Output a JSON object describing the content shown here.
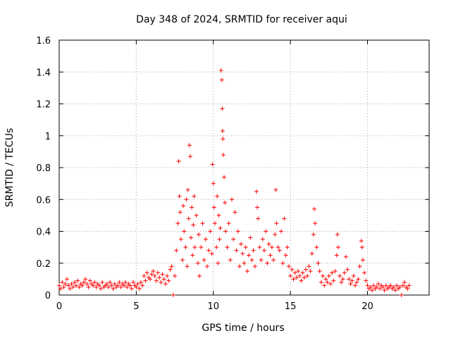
{
  "chart_data": {
    "type": "scatter",
    "title": "Day 348 of 2024, SRMTID for receiver aqui",
    "xlabel": "GPS time / hours",
    "ylabel": "SRMTID / TECUs",
    "xlim": [
      0,
      24
    ],
    "ylim": [
      0,
      1.6
    ],
    "xticks": [
      0,
      5,
      10,
      15,
      20
    ],
    "xtick_labels": [
      "0",
      "5",
      "10",
      "15",
      "20"
    ],
    "yticks": [
      0,
      0.2,
      0.4,
      0.6,
      0.8,
      1.0,
      1.2,
      1.4,
      1.6
    ],
    "ytick_labels": [
      "0",
      "0.2",
      "0.4",
      "0.6",
      "0.8",
      "1",
      "1.2",
      "1.4",
      "1.6"
    ],
    "grid": true,
    "series": [
      {
        "name": "SRMTID",
        "color": "#ff0000",
        "marker": "plus",
        "points": [
          [
            0.0,
            0.06
          ],
          [
            0.1,
            0.04
          ],
          [
            0.2,
            0.08
          ],
          [
            0.3,
            0.05
          ],
          [
            0.4,
            0.07
          ],
          [
            0.5,
            0.1
          ],
          [
            0.6,
            0.06
          ],
          [
            0.7,
            0.04
          ],
          [
            0.8,
            0.07
          ],
          [
            0.9,
            0.05
          ],
          [
            1.0,
            0.08
          ],
          [
            1.1,
            0.06
          ],
          [
            1.2,
            0.09
          ],
          [
            1.3,
            0.05
          ],
          [
            1.4,
            0.07
          ],
          [
            1.5,
            0.06
          ],
          [
            1.6,
            0.08
          ],
          [
            1.7,
            0.1
          ],
          [
            1.8,
            0.07
          ],
          [
            1.9,
            0.05
          ],
          [
            2.0,
            0.09
          ],
          [
            2.1,
            0.07
          ],
          [
            2.2,
            0.06
          ],
          [
            2.3,
            0.08
          ],
          [
            2.4,
            0.05
          ],
          [
            2.5,
            0.07
          ],
          [
            2.6,
            0.06
          ],
          [
            2.7,
            0.04
          ],
          [
            2.8,
            0.08
          ],
          [
            2.9,
            0.05
          ],
          [
            3.0,
            0.06
          ],
          [
            3.1,
            0.07
          ],
          [
            3.2,
            0.05
          ],
          [
            3.3,
            0.08
          ],
          [
            3.4,
            0.06
          ],
          [
            3.5,
            0.04
          ],
          [
            3.6,
            0.07
          ],
          [
            3.7,
            0.05
          ],
          [
            3.8,
            0.06
          ],
          [
            3.9,
            0.08
          ],
          [
            4.0,
            0.05
          ],
          [
            4.1,
            0.07
          ],
          [
            4.2,
            0.06
          ],
          [
            4.3,
            0.08
          ],
          [
            4.4,
            0.05
          ],
          [
            4.5,
            0.07
          ],
          [
            4.6,
            0.06
          ],
          [
            4.7,
            0.04
          ],
          [
            4.8,
            0.08
          ],
          [
            4.9,
            0.06
          ],
          [
            5.0,
            0.05
          ],
          [
            5.1,
            0.07
          ],
          [
            5.2,
            0.04
          ],
          [
            5.3,
            0.08
          ],
          [
            5.4,
            0.06
          ],
          [
            5.5,
            0.12
          ],
          [
            5.6,
            0.09
          ],
          [
            5.7,
            0.14
          ],
          [
            5.8,
            0.11
          ],
          [
            5.9,
            0.1
          ],
          [
            6.0,
            0.13
          ],
          [
            6.1,
            0.15
          ],
          [
            6.2,
            0.12
          ],
          [
            6.3,
            0.09
          ],
          [
            6.4,
            0.14
          ],
          [
            6.5,
            0.11
          ],
          [
            6.6,
            0.08
          ],
          [
            6.7,
            0.13
          ],
          [
            6.8,
            0.1
          ],
          [
            6.9,
            0.07
          ],
          [
            7.0,
            0.12
          ],
          [
            7.1,
            0.09
          ],
          [
            7.2,
            0.16
          ],
          [
            7.3,
            0.18
          ],
          [
            7.4,
            0.0
          ],
          [
            7.5,
            0.12
          ],
          [
            7.6,
            0.28
          ],
          [
            7.7,
            0.45
          ],
          [
            7.75,
            0.84
          ],
          [
            7.8,
            0.62
          ],
          [
            7.85,
            0.52
          ],
          [
            7.9,
            0.35
          ],
          [
            8.0,
            0.22
          ],
          [
            8.05,
            0.56
          ],
          [
            8.1,
            0.4
          ],
          [
            8.2,
            0.3
          ],
          [
            8.25,
            0.6
          ],
          [
            8.3,
            0.18
          ],
          [
            8.35,
            0.66
          ],
          [
            8.4,
            0.48
          ],
          [
            8.45,
            0.94
          ],
          [
            8.5,
            0.87
          ],
          [
            8.55,
            0.36
          ],
          [
            8.6,
            0.55
          ],
          [
            8.65,
            0.25
          ],
          [
            8.7,
            0.44
          ],
          [
            8.75,
            0.62
          ],
          [
            8.8,
            0.3
          ],
          [
            8.9,
            0.5
          ],
          [
            9.0,
            0.2
          ],
          [
            9.05,
            0.38
          ],
          [
            9.1,
            0.12
          ],
          [
            9.2,
            0.3
          ],
          [
            9.3,
            0.45
          ],
          [
            9.4,
            0.22
          ],
          [
            9.5,
            0.35
          ],
          [
            9.6,
            0.18
          ],
          [
            9.7,
            0.28
          ],
          [
            9.8,
            0.4
          ],
          [
            9.9,
            0.26
          ],
          [
            9.95,
            0.82
          ],
          [
            10.0,
            0.7
          ],
          [
            10.05,
            0.55
          ],
          [
            10.1,
            0.45
          ],
          [
            10.2,
            0.3
          ],
          [
            10.25,
            0.62
          ],
          [
            10.3,
            0.2
          ],
          [
            10.35,
            0.5
          ],
          [
            10.4,
            0.35
          ],
          [
            10.45,
            0.42
          ],
          [
            10.5,
            1.41
          ],
          [
            10.55,
            1.35
          ],
          [
            10.58,
            1.17
          ],
          [
            10.6,
            1.03
          ],
          [
            10.62,
            0.98
          ],
          [
            10.65,
            0.88
          ],
          [
            10.7,
            0.74
          ],
          [
            10.75,
            0.58
          ],
          [
            10.8,
            0.4
          ],
          [
            10.9,
            0.3
          ],
          [
            11.0,
            0.45
          ],
          [
            11.1,
            0.22
          ],
          [
            11.2,
            0.6
          ],
          [
            11.3,
            0.35
          ],
          [
            11.4,
            0.52
          ],
          [
            11.5,
            0.28
          ],
          [
            11.6,
            0.4
          ],
          [
            11.7,
            0.18
          ],
          [
            11.8,
            0.32
          ],
          [
            11.9,
            0.26
          ],
          [
            12.0,
            0.2
          ],
          [
            12.1,
            0.3
          ],
          [
            12.2,
            0.15
          ],
          [
            12.3,
            0.25
          ],
          [
            12.4,
            0.36
          ],
          [
            12.5,
            0.22
          ],
          [
            12.6,
            0.28
          ],
          [
            12.7,
            0.18
          ],
          [
            12.8,
            0.65
          ],
          [
            12.85,
            0.55
          ],
          [
            12.9,
            0.48
          ],
          [
            13.0,
            0.3
          ],
          [
            13.1,
            0.22
          ],
          [
            13.2,
            0.35
          ],
          [
            13.3,
            0.28
          ],
          [
            13.4,
            0.4
          ],
          [
            13.5,
            0.2
          ],
          [
            13.6,
            0.32
          ],
          [
            13.7,
            0.25
          ],
          [
            13.8,
            0.3
          ],
          [
            13.9,
            0.22
          ],
          [
            14.0,
            0.38
          ],
          [
            14.05,
            0.66
          ],
          [
            14.1,
            0.45
          ],
          [
            14.2,
            0.3
          ],
          [
            14.3,
            0.28
          ],
          [
            14.4,
            0.4
          ],
          [
            14.5,
            0.2
          ],
          [
            14.6,
            0.48
          ],
          [
            14.7,
            0.25
          ],
          [
            14.8,
            0.3
          ],
          [
            14.9,
            0.18
          ],
          [
            15.0,
            0.12
          ],
          [
            15.1,
            0.16
          ],
          [
            15.2,
            0.1
          ],
          [
            15.3,
            0.14
          ],
          [
            15.4,
            0.11
          ],
          [
            15.5,
            0.15
          ],
          [
            15.6,
            0.12
          ],
          [
            15.7,
            0.09
          ],
          [
            15.8,
            0.14
          ],
          [
            15.9,
            0.11
          ],
          [
            16.0,
            0.16
          ],
          [
            16.1,
            0.12
          ],
          [
            16.2,
            0.18
          ],
          [
            16.3,
            0.15
          ],
          [
            16.4,
            0.26
          ],
          [
            16.5,
            0.38
          ],
          [
            16.55,
            0.54
          ],
          [
            16.6,
            0.45
          ],
          [
            16.7,
            0.3
          ],
          [
            16.8,
            0.2
          ],
          [
            16.9,
            0.15
          ],
          [
            17.0,
            0.08
          ],
          [
            17.1,
            0.12
          ],
          [
            17.2,
            0.06
          ],
          [
            17.3,
            0.1
          ],
          [
            17.4,
            0.08
          ],
          [
            17.5,
            0.12
          ],
          [
            17.6,
            0.07
          ],
          [
            17.7,
            0.14
          ],
          [
            17.8,
            0.09
          ],
          [
            17.9,
            0.15
          ],
          [
            18.0,
            0.25
          ],
          [
            18.05,
            0.38
          ],
          [
            18.1,
            0.3
          ],
          [
            18.2,
            0.12
          ],
          [
            18.3,
            0.08
          ],
          [
            18.4,
            0.1
          ],
          [
            18.5,
            0.14
          ],
          [
            18.6,
            0.24
          ],
          [
            18.7,
            0.16
          ],
          [
            18.8,
            0.1
          ],
          [
            18.9,
            0.07
          ],
          [
            19.0,
            0.09
          ],
          [
            19.1,
            0.12
          ],
          [
            19.2,
            0.06
          ],
          [
            19.3,
            0.08
          ],
          [
            19.4,
            0.1
          ],
          [
            19.5,
            0.18
          ],
          [
            19.6,
            0.34
          ],
          [
            19.65,
            0.3
          ],
          [
            19.7,
            0.22
          ],
          [
            19.8,
            0.14
          ],
          [
            19.9,
            0.09
          ],
          [
            20.0,
            0.06
          ],
          [
            20.1,
            0.04
          ],
          [
            20.2,
            0.05
          ],
          [
            20.3,
            0.03
          ],
          [
            20.4,
            0.06
          ],
          [
            20.5,
            0.04
          ],
          [
            20.6,
            0.05
          ],
          [
            20.7,
            0.07
          ],
          [
            20.8,
            0.04
          ],
          [
            20.9,
            0.06
          ],
          [
            21.0,
            0.05
          ],
          [
            21.1,
            0.03
          ],
          [
            21.2,
            0.06
          ],
          [
            21.3,
            0.04
          ],
          [
            21.4,
            0.05
          ],
          [
            21.5,
            0.06
          ],
          [
            21.6,
            0.04
          ],
          [
            21.7,
            0.05
          ],
          [
            21.8,
            0.03
          ],
          [
            21.9,
            0.06
          ],
          [
            22.0,
            0.04
          ],
          [
            22.1,
            0.05
          ],
          [
            22.2,
            0.0
          ],
          [
            22.3,
            0.06
          ],
          [
            22.4,
            0.08
          ],
          [
            22.5,
            0.05
          ],
          [
            22.6,
            0.04
          ],
          [
            22.7,
            0.06
          ]
        ]
      }
    ]
  }
}
